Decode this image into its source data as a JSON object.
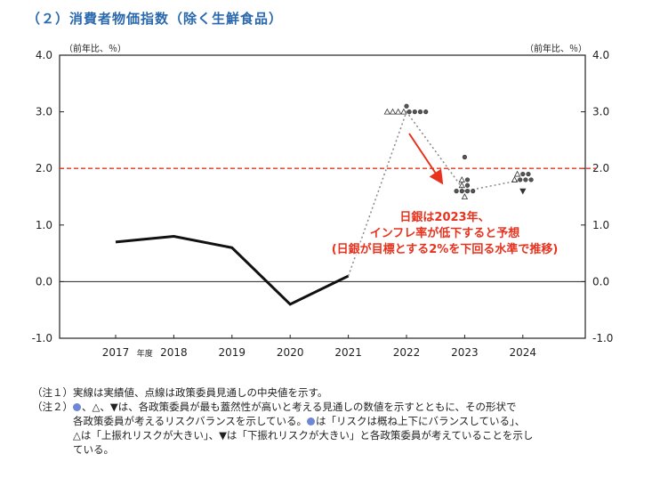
{
  "title": "（２）消費者物価指数（除く生鮮食品）",
  "unit_left": "（前年比、％）",
  "unit_right": "（前年比、％）",
  "chart_data": {
    "type": "line",
    "ylim": [
      -1.0,
      4.0
    ],
    "yticks": [
      "4.0",
      "3.0",
      "2.0",
      "1.0",
      "0.0",
      "-1.0"
    ],
    "ytick_values": [
      4.0,
      3.0,
      2.0,
      1.0,
      0.0,
      -1.0
    ],
    "categories": [
      "2017",
      "2018",
      "2019",
      "2020",
      "2021",
      "2022",
      "2023",
      "2024"
    ],
    "fiscal_year_label": "年度",
    "target_line": 2.0,
    "zero_line": 0.0,
    "actual": {
      "name": "実績値",
      "style": "solid",
      "values": [
        0.7,
        0.8,
        0.6,
        -0.4,
        0.1
      ]
    },
    "projection": {
      "name": "政策委員見通しの中央値",
      "style": "dotted",
      "points": [
        {
          "x": "2021",
          "y": 0.1
        },
        {
          "x": "2022",
          "y": 3.0
        },
        {
          "x": "2023",
          "y": 1.6
        },
        {
          "x": "2024",
          "y": 1.8
        }
      ]
    },
    "board_views": [
      {
        "year": "2022",
        "risk_balanced": [
          3.0,
          3.0,
          3.0,
          3.0,
          3.1
        ],
        "upside": [
          3.0,
          3.0,
          3.0,
          3.0
        ],
        "downside": []
      },
      {
        "year": "2023",
        "risk_balanced": [
          1.6,
          1.6,
          1.6,
          1.6,
          1.7,
          1.8,
          2.2
        ],
        "upside": [
          1.5,
          1.7,
          1.8
        ],
        "downside": []
      },
      {
        "year": "2024",
        "risk_balanced": [
          1.8,
          1.8,
          1.8,
          1.9,
          1.9
        ],
        "upside": [
          1.8,
          1.9
        ],
        "downside": [
          1.6
        ]
      }
    ],
    "annotation": {
      "lines": [
        "日銀は2023年、",
        "インフレ率が低下すると予想",
        "(日銀が目標とする2%を下回る水準で推移)"
      ],
      "color": "#e8321e"
    },
    "colors": {
      "actual": "#111111",
      "projection": "#888888",
      "target": "#e8321e",
      "dot": "#555555"
    }
  },
  "notes": {
    "note1_tag": "（注１）",
    "note1_text": "実線は実績値、点線は政策委員見通しの中央値を示す。",
    "note2_tag": "（注２）",
    "note2_line1": "、△、▼は、各政策委員が最も蓋然性が高いと考える見通しの数値を示すとともに、その形状で",
    "note2_line2": "各政策委員が考えるリスクバランスを示している。",
    "note2_line2b": "は「リスクは概ね上下にバランスしている」、",
    "note2_line3": "△は「上振れリスクが大きい」、▼は「下振れリスクが大きい」と各政策委員が考えていることを示し",
    "note2_line4": "ている。"
  }
}
